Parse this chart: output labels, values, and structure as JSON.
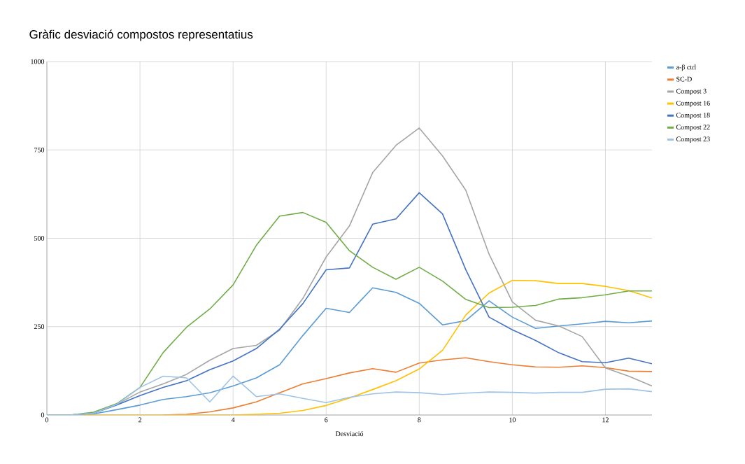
{
  "chart_data": {
    "type": "line",
    "title": "Gràfic desviació compostos representatius",
    "xlabel": "Desviació",
    "x": [
      0,
      0.5,
      1,
      1.5,
      2,
      2.5,
      3,
      3.5,
      4,
      4.5,
      5,
      5.5,
      6,
      6.5,
      7,
      7.5,
      8,
      8.5,
      9,
      9.5,
      10,
      10.5,
      11,
      11.5,
      12,
      12.5,
      13
    ],
    "xlim": [
      0,
      13
    ],
    "xticks": [
      0,
      2,
      4,
      6,
      8,
      10,
      12
    ],
    "ylim": [
      0,
      1000
    ],
    "yticks": [
      0,
      250,
      500,
      750,
      1000
    ],
    "grid": true,
    "legend": "right",
    "marker": "none",
    "line_style": "solid",
    "series": [
      {
        "name": "a-β ctrl",
        "color": "#5b9bd5",
        "values": [
          0,
          0,
          3,
          15,
          28,
          44,
          52,
          63,
          82,
          105,
          142,
          225,
          302,
          290,
          360,
          347,
          316,
          255,
          267,
          323,
          277,
          245,
          252,
          258,
          265,
          261,
          266
        ]
      },
      {
        "name": "SC-D",
        "color": "#ed7d31",
        "values": [
          null,
          null,
          null,
          null,
          null,
          0,
          2,
          9,
          20,
          37,
          63,
          88,
          103,
          119,
          131,
          121,
          147,
          156,
          162,
          151,
          142,
          136,
          135,
          139,
          134,
          124,
          123
        ]
      },
      {
        "name": "Compost 3",
        "color": "#a5a5a5",
        "values": [
          0,
          0,
          5,
          30,
          65,
          88,
          115,
          155,
          188,
          197,
          240,
          330,
          447,
          535,
          686,
          763,
          812,
          733,
          636,
          455,
          320,
          268,
          252,
          222,
          133,
          110,
          82
        ]
      },
      {
        "name": "Compost 16",
        "color": "#ffc000",
        "values": [
          0,
          0,
          0,
          0,
          0,
          0,
          0,
          0,
          0,
          2,
          5,
          13,
          27,
          48,
          72,
          97,
          130,
          183,
          283,
          345,
          381,
          380,
          372,
          372,
          364,
          352,
          331
        ]
      },
      {
        "name": "Compost 18",
        "color": "#4472c4",
        "values": [
          0,
          0,
          5,
          28,
          55,
          78,
          97,
          128,
          153,
          188,
          243,
          315,
          411,
          416,
          540,
          555,
          629,
          569,
          411,
          277,
          241,
          211,
          176,
          151,
          148,
          161,
          145
        ]
      },
      {
        "name": "Compost 22",
        "color": "#70ad47",
        "values": [
          0,
          0,
          8,
          32,
          78,
          177,
          248,
          300,
          368,
          480,
          563,
          573,
          545,
          465,
          418,
          384,
          418,
          379,
          327,
          304,
          305,
          310,
          328,
          332,
          340,
          351,
          351
        ]
      },
      {
        "name": "Compost 23",
        "color": "#9dc3e6",
        "values": [
          0,
          0,
          5,
          30,
          78,
          110,
          105,
          37,
          110,
          52,
          60,
          47,
          35,
          50,
          60,
          65,
          63,
          58,
          62,
          65,
          64,
          62,
          64,
          64,
          73,
          74,
          66
        ]
      }
    ]
  }
}
